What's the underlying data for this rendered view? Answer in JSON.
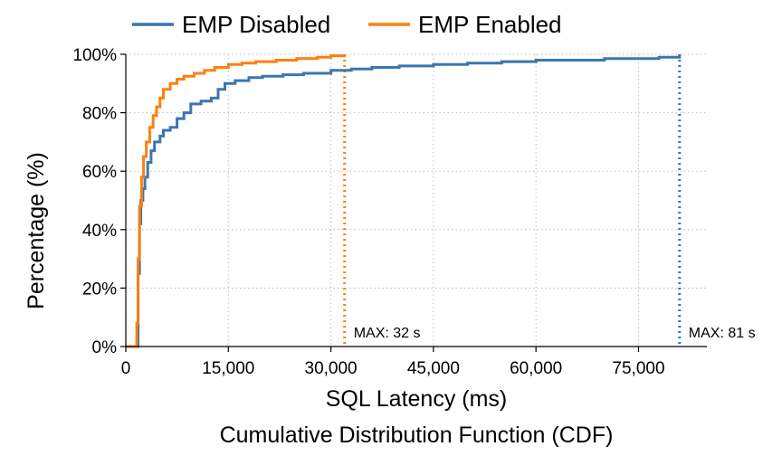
{
  "chart_data": {
    "type": "line",
    "step": true,
    "title": "",
    "caption": "Cumulative Distribution Function (CDF)",
    "xlabel": "SQL Latency (ms)",
    "ylabel": "Percentage (%)",
    "xlim": [
      0,
      85000
    ],
    "ylim": [
      0,
      100
    ],
    "xticks": [
      0,
      15000,
      30000,
      45000,
      60000,
      75000
    ],
    "xtick_labels": [
      "0",
      "15,000",
      "30,000",
      "45,000",
      "60,000",
      "75,000"
    ],
    "yticks": [
      0,
      20,
      40,
      60,
      80,
      100
    ],
    "ytick_labels": [
      "0%",
      "20%",
      "40%",
      "60%",
      "80%",
      "100%"
    ],
    "grid": true,
    "legend": "top",
    "series": [
      {
        "name": "EMP Disabled",
        "color": "#3b76b0",
        "x": [
          0,
          1500,
          1800,
          2000,
          2200,
          2500,
          2800,
          3200,
          3700,
          4200,
          5000,
          5500,
          6500,
          7500,
          8500,
          9500,
          11000,
          12500,
          13500,
          14500,
          16000,
          18000,
          20000,
          23000,
          26000,
          30000,
          33000,
          36000,
          40000,
          45000,
          50000,
          55000,
          60000,
          70000,
          78000,
          81000
        ],
        "y": [
          0,
          0,
          25,
          42,
          50,
          54,
          58,
          63,
          67,
          70,
          72,
          74,
          75,
          78,
          80,
          83,
          84,
          85,
          88,
          90,
          91,
          92,
          92.5,
          93,
          93.5,
          94.5,
          95,
          95.5,
          96,
          96.5,
          97,
          97.5,
          98,
          98.5,
          99,
          100
        ]
      },
      {
        "name": "EMP Enabled",
        "color": "#ff7f0e",
        "x": [
          0,
          1400,
          1600,
          1800,
          2000,
          2300,
          2600,
          3000,
          3500,
          4000,
          4500,
          5000,
          5500,
          6500,
          7500,
          8500,
          10000,
          11500,
          13000,
          15000,
          17000,
          19000,
          22000,
          25000,
          28000,
          30000,
          32000
        ],
        "y": [
          0,
          0,
          8,
          30,
          48,
          58,
          65,
          70,
          75,
          79,
          82,
          85,
          88,
          90,
          91.5,
          92.5,
          93.5,
          94.5,
          95.5,
          96.5,
          97,
          97.5,
          98,
          98.5,
          99,
          99.5,
          100
        ]
      }
    ],
    "annotations": [
      {
        "text": "MAX: 32 s",
        "x": 32000,
        "series": "EMP Enabled"
      },
      {
        "text": "MAX: 81 s",
        "x": 81000,
        "series": "EMP Disabled"
      }
    ]
  }
}
